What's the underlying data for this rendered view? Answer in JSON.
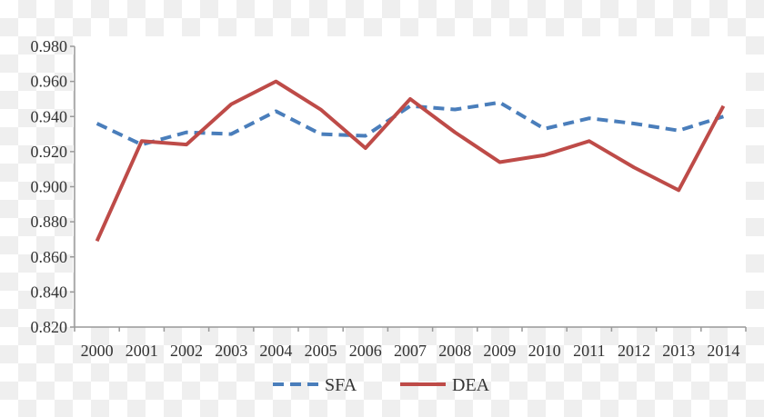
{
  "chart_data": {
    "type": "line",
    "title": "",
    "xlabel": "",
    "ylabel": "",
    "categories": [
      "2000",
      "2001",
      "2002",
      "2003",
      "2004",
      "2005",
      "2006",
      "2007",
      "2008",
      "2009",
      "2010",
      "2011",
      "2012",
      "2013",
      "2014"
    ],
    "ylim": [
      0.82,
      0.98
    ],
    "yticks": [
      "0.820",
      "0.840",
      "0.860",
      "0.880",
      "0.900",
      "0.920",
      "0.940",
      "0.960",
      "0.980"
    ],
    "grid": false,
    "legend_position": "bottom",
    "series": [
      {
        "name": "SFA",
        "color": "#4a7ebb",
        "style": "dashed",
        "values": [
          0.936,
          0.924,
          0.931,
          0.93,
          0.943,
          0.93,
          0.929,
          0.946,
          0.944,
          0.948,
          0.933,
          0.939,
          0.936,
          0.932,
          0.94
        ]
      },
      {
        "name": "DEA",
        "color": "#be4b48",
        "style": "solid",
        "values": [
          0.869,
          0.926,
          0.924,
          0.947,
          0.96,
          0.944,
          0.922,
          0.95,
          0.931,
          0.914,
          0.918,
          0.926,
          0.911,
          0.898,
          0.946
        ]
      }
    ]
  }
}
